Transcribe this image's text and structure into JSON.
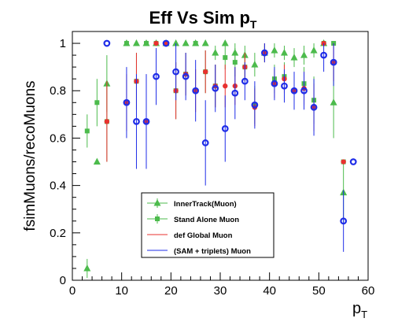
{
  "chart_data": {
    "type": "scatter",
    "title": {
      "main": "Eff Vs Sim p",
      "sub": "T"
    },
    "xlabel": {
      "main": "p",
      "sub": "T"
    },
    "ylabel": "fsimMuons/recoMuons",
    "xlim": [
      0,
      60
    ],
    "ylim": [
      0,
      1.05
    ],
    "xticks": [
      "0",
      "10",
      "20",
      "30",
      "40",
      "50",
      "60"
    ],
    "yticks": [
      "0",
      "0.2",
      "0.4",
      "0.6",
      "0.8",
      "1"
    ],
    "legend_position": "center-left",
    "series": [
      {
        "name": "InnerTrack(Muon)",
        "marker": "triangle",
        "color": "#4cbb4c",
        "points": [
          {
            "x": 3,
            "y": 0.05,
            "lo": 0.01,
            "hi": 0.09
          },
          {
            "x": 5,
            "y": 0.5,
            "lo": 0.5,
            "hi": 0.5
          },
          {
            "x": 7,
            "y": 0.83,
            "lo": 0.71,
            "hi": 0.95
          },
          {
            "x": 11,
            "y": 1.0,
            "lo": 1.0,
            "hi": 1.0
          },
          {
            "x": 13,
            "y": 1.0,
            "lo": 1.0,
            "hi": 1.0
          },
          {
            "x": 15,
            "y": 1.0,
            "lo": 1.0,
            "hi": 1.0
          },
          {
            "x": 17,
            "y": 1.0,
            "lo": 1.0,
            "hi": 1.0
          },
          {
            "x": 19,
            "y": 1.0,
            "lo": 1.0,
            "hi": 1.0
          },
          {
            "x": 21,
            "y": 1.0,
            "lo": 1.0,
            "hi": 1.0
          },
          {
            "x": 23,
            "y": 1.0,
            "lo": 1.0,
            "hi": 1.0
          },
          {
            "x": 25,
            "y": 1.0,
            "lo": 1.0,
            "hi": 1.0
          },
          {
            "x": 27,
            "y": 1.0,
            "lo": 1.0,
            "hi": 1.0
          },
          {
            "x": 29,
            "y": 0.96,
            "lo": 0.93,
            "hi": 0.99
          },
          {
            "x": 31,
            "y": 1.0,
            "lo": 1.0,
            "hi": 1.0
          },
          {
            "x": 33,
            "y": 0.96,
            "lo": 0.92,
            "hi": 1.0
          },
          {
            "x": 35,
            "y": 0.95,
            "lo": 0.91,
            "hi": 0.99
          },
          {
            "x": 37,
            "y": 0.91,
            "lo": 0.86,
            "hi": 0.96
          },
          {
            "x": 39,
            "y": 0.96,
            "lo": 0.93,
            "hi": 0.99
          },
          {
            "x": 41,
            "y": 0.97,
            "lo": 0.94,
            "hi": 1.0
          },
          {
            "x": 43,
            "y": 0.96,
            "lo": 0.93,
            "hi": 0.99
          },
          {
            "x": 45,
            "y": 0.94,
            "lo": 0.9,
            "hi": 0.98
          },
          {
            "x": 47,
            "y": 0.95,
            "lo": 0.91,
            "hi": 0.99
          },
          {
            "x": 49,
            "y": 0.97,
            "lo": 0.94,
            "hi": 1.0
          },
          {
            "x": 51,
            "y": 1.0,
            "lo": 1.0,
            "hi": 1.0
          },
          {
            "x": 53,
            "y": 0.75,
            "lo": 0.6,
            "hi": 0.9
          },
          {
            "x": 55,
            "y": 0.37,
            "lo": 0.24,
            "hi": 0.5
          }
        ]
      },
      {
        "name": "Stand Alone Muon",
        "marker": "square",
        "color": "#4cbb4c",
        "points": [
          {
            "x": 3,
            "y": 0.63,
            "lo": 0.56,
            "hi": 0.7
          },
          {
            "x": 5,
            "y": 0.75,
            "lo": 0.65,
            "hi": 0.85
          },
          {
            "x": 7,
            "y": 0.67,
            "lo": 0.5,
            "hi": 0.84
          },
          {
            "x": 11,
            "y": 1.0,
            "lo": 1.0,
            "hi": 1.0
          },
          {
            "x": 13,
            "y": 0.84,
            "lo": 0.72,
            "hi": 0.96
          },
          {
            "x": 15,
            "y": 1.0,
            "lo": 1.0,
            "hi": 1.0
          },
          {
            "x": 17,
            "y": 1.0,
            "lo": 1.0,
            "hi": 1.0
          },
          {
            "x": 19,
            "y": 1.0,
            "lo": 1.0,
            "hi": 1.0
          },
          {
            "x": 21,
            "y": 0.8,
            "lo": 0.68,
            "hi": 0.92
          },
          {
            "x": 23,
            "y": 0.87,
            "lo": 0.78,
            "hi": 0.96
          },
          {
            "x": 25,
            "y": 1.0,
            "lo": 1.0,
            "hi": 1.0
          },
          {
            "x": 27,
            "y": 0.88,
            "lo": 0.79,
            "hi": 0.97
          },
          {
            "x": 29,
            "y": 0.82,
            "lo": 0.73,
            "hi": 0.91
          },
          {
            "x": 31,
            "y": 0.94,
            "lo": 0.89,
            "hi": 0.99
          },
          {
            "x": 33,
            "y": 0.92,
            "lo": 0.86,
            "hi": 0.98
          },
          {
            "x": 35,
            "y": 0.9,
            "lo": 0.84,
            "hi": 0.96
          },
          {
            "x": 37,
            "y": 0.74,
            "lo": 0.66,
            "hi": 0.82
          },
          {
            "x": 39,
            "y": 0.96,
            "lo": 0.92,
            "hi": 1.0
          },
          {
            "x": 41,
            "y": 0.85,
            "lo": 0.79,
            "hi": 0.91
          },
          {
            "x": 43,
            "y": 0.86,
            "lo": 0.8,
            "hi": 0.92
          },
          {
            "x": 45,
            "y": 0.8,
            "lo": 0.73,
            "hi": 0.87
          },
          {
            "x": 47,
            "y": 0.83,
            "lo": 0.76,
            "hi": 0.9
          },
          {
            "x": 49,
            "y": 0.76,
            "lo": 0.66,
            "hi": 0.86
          },
          {
            "x": 51,
            "y": 1.0,
            "lo": 1.0,
            "hi": 1.0
          },
          {
            "x": 53,
            "y": 1.0,
            "lo": 1.0,
            "hi": 1.0
          },
          {
            "x": 55,
            "y": 0.5,
            "lo": 0.5,
            "hi": 0.5
          }
        ]
      },
      {
        "name": "def Global Muon",
        "marker": "circle",
        "color": "#e8312f",
        "points": [
          {
            "x": 7,
            "y": 0.67,
            "lo": 0.5,
            "hi": 0.84
          },
          {
            "x": 11,
            "y": 0.75,
            "lo": 0.63,
            "hi": 0.87
          },
          {
            "x": 13,
            "y": 0.84,
            "lo": 0.72,
            "hi": 0.96
          },
          {
            "x": 15,
            "y": 0.67,
            "lo": 0.52,
            "hi": 0.82
          },
          {
            "x": 17,
            "y": 1.0,
            "lo": 1.0,
            "hi": 1.0
          },
          {
            "x": 19,
            "y": 1.0,
            "lo": 1.0,
            "hi": 1.0
          },
          {
            "x": 21,
            "y": 0.8,
            "lo": 0.68,
            "hi": 0.92
          },
          {
            "x": 23,
            "y": 0.87,
            "lo": 0.78,
            "hi": 0.96
          },
          {
            "x": 25,
            "y": 0.8,
            "lo": 0.71,
            "hi": 0.89
          },
          {
            "x": 27,
            "y": 0.88,
            "lo": 0.79,
            "hi": 0.97
          },
          {
            "x": 29,
            "y": 0.82,
            "lo": 0.73,
            "hi": 0.91
          },
          {
            "x": 31,
            "y": 0.82,
            "lo": 0.73,
            "hi": 0.91
          },
          {
            "x": 33,
            "y": 0.82,
            "lo": 0.74,
            "hi": 0.9
          },
          {
            "x": 35,
            "y": 0.9,
            "lo": 0.84,
            "hi": 0.96
          },
          {
            "x": 37,
            "y": 0.73,
            "lo": 0.65,
            "hi": 0.81
          },
          {
            "x": 39,
            "y": 0.96,
            "lo": 0.92,
            "hi": 1.0
          },
          {
            "x": 41,
            "y": 0.83,
            "lo": 0.77,
            "hi": 0.89
          },
          {
            "x": 43,
            "y": 0.85,
            "lo": 0.79,
            "hi": 0.91
          },
          {
            "x": 45,
            "y": 0.8,
            "lo": 0.73,
            "hi": 0.87
          },
          {
            "x": 47,
            "y": 0.81,
            "lo": 0.74,
            "hi": 0.88
          },
          {
            "x": 49,
            "y": 0.73,
            "lo": 0.63,
            "hi": 0.83
          },
          {
            "x": 51,
            "y": 1.0,
            "lo": 1.0,
            "hi": 1.0
          },
          {
            "x": 53,
            "y": 0.92,
            "lo": 0.84,
            "hi": 1.0
          },
          {
            "x": 55,
            "y": 0.5,
            "lo": 0.5,
            "hi": 0.5
          }
        ]
      },
      {
        "name": "(SAM + triplets) Muon",
        "marker": "open-circle",
        "color": "#1f2de8",
        "points": [
          {
            "x": 7,
            "y": 1.0,
            "lo": 1.0,
            "hi": 1.0
          },
          {
            "x": 11,
            "y": 0.75,
            "lo": 0.6,
            "hi": 0.9
          },
          {
            "x": 13,
            "y": 0.67,
            "lo": 0.47,
            "hi": 0.87
          },
          {
            "x": 15,
            "y": 0.67,
            "lo": 0.47,
            "hi": 0.87
          },
          {
            "x": 17,
            "y": 0.86,
            "lo": 0.74,
            "hi": 0.98
          },
          {
            "x": 19,
            "y": 1.0,
            "lo": 1.0,
            "hi": 1.0
          },
          {
            "x": 21,
            "y": 0.88,
            "lo": 0.76,
            "hi": 1.0
          },
          {
            "x": 23,
            "y": 0.86,
            "lo": 0.76,
            "hi": 0.96
          },
          {
            "x": 25,
            "y": 0.8,
            "lo": 0.67,
            "hi": 0.93
          },
          {
            "x": 27,
            "y": 0.58,
            "lo": 0.4,
            "hi": 0.76
          },
          {
            "x": 29,
            "y": 0.81,
            "lo": 0.71,
            "hi": 0.91
          },
          {
            "x": 31,
            "y": 0.64,
            "lo": 0.5,
            "hi": 0.78
          },
          {
            "x": 33,
            "y": 0.79,
            "lo": 0.68,
            "hi": 0.9
          },
          {
            "x": 35,
            "y": 0.84,
            "lo": 0.76,
            "hi": 0.92
          },
          {
            "x": 37,
            "y": 0.74,
            "lo": 0.64,
            "hi": 0.84
          },
          {
            "x": 39,
            "y": 0.96,
            "lo": 0.92,
            "hi": 1.0
          },
          {
            "x": 41,
            "y": 0.83,
            "lo": 0.76,
            "hi": 0.9
          },
          {
            "x": 43,
            "y": 0.82,
            "lo": 0.75,
            "hi": 0.89
          },
          {
            "x": 45,
            "y": 0.8,
            "lo": 0.72,
            "hi": 0.88
          },
          {
            "x": 47,
            "y": 0.8,
            "lo": 0.72,
            "hi": 0.88
          },
          {
            "x": 49,
            "y": 0.73,
            "lo": 0.61,
            "hi": 0.85
          },
          {
            "x": 51,
            "y": 0.95,
            "lo": 0.88,
            "hi": 1.0
          },
          {
            "x": 53,
            "y": 0.92,
            "lo": 0.82,
            "hi": 1.0
          },
          {
            "x": 55,
            "y": 0.25,
            "lo": 0.12,
            "hi": 0.38
          },
          {
            "x": 57,
            "y": 0.5,
            "lo": 0.5,
            "hi": 0.5
          }
        ]
      }
    ]
  }
}
